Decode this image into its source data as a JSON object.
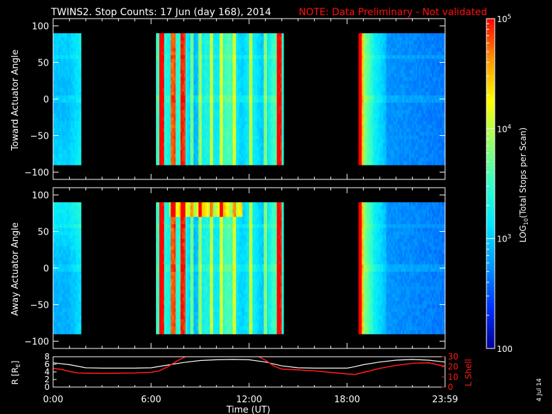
{
  "title": {
    "main": "TWINS2. Stop Counts: 17 Jun (day 168), 2014",
    "note": "NOTE: Data Preliminary - Not validated",
    "note_color": "#ff1010"
  },
  "footer_date": "4 Jul 14",
  "chart_data": [
    {
      "type": "heatmap",
      "name": "toward",
      "ylabel": "Toward Actuator Angle",
      "ylim": [
        -110,
        110
      ],
      "yticks": [
        "100",
        "50",
        "0",
        "−50",
        "−100"
      ],
      "ytick_values": [
        100,
        50,
        0,
        -50,
        -100
      ],
      "angle_range": [
        -90,
        90
      ],
      "colorscale_log_range": [
        2,
        5
      ],
      "data_intervals_hours": [
        [
          0.0,
          1.7
        ],
        [
          6.3,
          14.1
        ],
        [
          18.7,
          24.0
        ]
      ]
    },
    {
      "type": "heatmap",
      "name": "away",
      "ylabel": "Away Actuator Angle",
      "ylim": [
        -110,
        110
      ],
      "yticks": [
        "100",
        "50",
        "0",
        "−50",
        "−100"
      ],
      "ytick_values": [
        100,
        50,
        0,
        -50,
        -100
      ],
      "angle_range": [
        -90,
        90
      ],
      "colorscale_log_range": [
        2,
        5
      ],
      "data_intervals_hours": [
        [
          0.0,
          1.7
        ],
        [
          6.3,
          14.1
        ],
        [
          18.7,
          24.0
        ]
      ]
    },
    {
      "type": "line",
      "name": "orbit",
      "xlabel": "Time (UT)",
      "xlim": [
        0,
        24
      ],
      "xticks": [
        "0:00",
        "6:00",
        "12:00",
        "18:00",
        "23:59"
      ],
      "xtick_values": [
        0,
        6,
        12,
        18,
        24
      ],
      "ylabel_left": "R [R",
      "ylabel_left_sub": "E",
      "ylabel_left_close": "]",
      "ylim_left": [
        0,
        8
      ],
      "yticks_left": [
        "0",
        "2",
        "4",
        "6",
        "8"
      ],
      "ylabel_right": "L Shell",
      "ylim_right": [
        0,
        30
      ],
      "yticks_right": [
        "0",
        "10",
        "20",
        "30"
      ],
      "series": [
        {
          "name": "R",
          "color": "#ffffff",
          "x": [
            0,
            1,
            2,
            3,
            4,
            5,
            6,
            7,
            8,
            9,
            10,
            11,
            12,
            13,
            14,
            15,
            16,
            17,
            18,
            18.5,
            19,
            20,
            21,
            22,
            23,
            24
          ],
          "y": [
            6.4,
            5.9,
            5.1,
            5.0,
            5.0,
            5.0,
            5.1,
            5.8,
            6.5,
            7.0,
            7.2,
            7.3,
            7.2,
            6.6,
            5.6,
            5.1,
            5.0,
            5.0,
            5.0,
            5.4,
            5.9,
            6.6,
            7.1,
            7.3,
            7.1,
            6.6
          ]
        },
        {
          "name": "L Shell",
          "color": "#ff1a1a",
          "segments": [
            {
              "x": [
                0,
                0.5,
                1,
                1.5,
                2,
                3,
                4,
                5,
                6,
                6.5,
                7,
                7.6,
                8.1
              ],
              "y": [
                18.5,
                17.5,
                15.5,
                14.0,
                13.8,
                13.6,
                13.8,
                14.0,
                14.6,
                16.0,
                20.0,
                26.0,
                30.0
              ]
            },
            {
              "x": [
                12.6,
                13,
                13.5,
                14,
                15,
                16,
                17,
                18,
                18.5,
                19,
                20,
                21,
                22,
                23,
                24
              ],
              "y": [
                30.0,
                26.5,
                21.0,
                17.8,
                17.0,
                16.0,
                14.5,
                13.0,
                12.5,
                14.5,
                18.5,
                21.5,
                23.5,
                24.0,
                20.5
              ]
            }
          ]
        }
      ]
    },
    {
      "type": "heatmap-colorbar",
      "name": "colorbar",
      "label_pre": "LOG",
      "label_sub": "10",
      "label_post": "(Total Stops per Scan)",
      "tick_base": "10",
      "ticks": [
        {
          "value": 100000,
          "exp": "5",
          "log": 5
        },
        {
          "value": 10000,
          "exp": "4",
          "log": 4
        },
        {
          "value": 1000,
          "exp": "3",
          "log": 3
        },
        {
          "value": 100,
          "text": "100",
          "log": 2
        }
      ],
      "colors": [
        "#000096",
        "#0032ff",
        "#0096ff",
        "#00e6ff",
        "#32ffc8",
        "#96ff64",
        "#ffff00",
        "#ff9600",
        "#ff0000"
      ]
    }
  ]
}
